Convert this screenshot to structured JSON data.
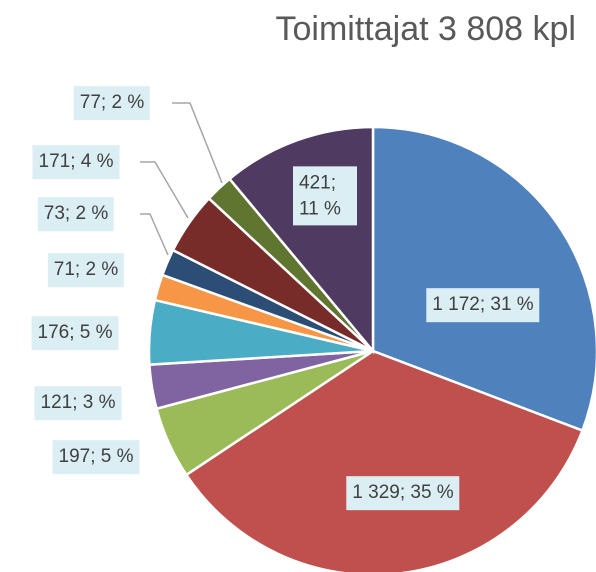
{
  "chart_data": {
    "type": "pie",
    "title": "Toimittajat 3 808 kpl",
    "values": [
      1172,
      1329,
      197,
      121,
      176,
      71,
      73,
      171,
      77,
      421
    ],
    "value_labels": [
      "1 172; 31 %",
      "1 329; 35 %",
      "197; 5 %",
      "121; 3 %",
      "176; 5 %",
      "71; 2 %",
      "73; 2 %",
      "171; 4 %",
      "77; 2 %",
      "421; 11 %"
    ],
    "colors": [
      "#4f81bd",
      "#c0504d",
      "#9bbb59",
      "#8064a2",
      "#4bacc6",
      "#f79646",
      "#2c4d75",
      "#772c2a",
      "#5f7530",
      "#4f3b62"
    ]
  }
}
